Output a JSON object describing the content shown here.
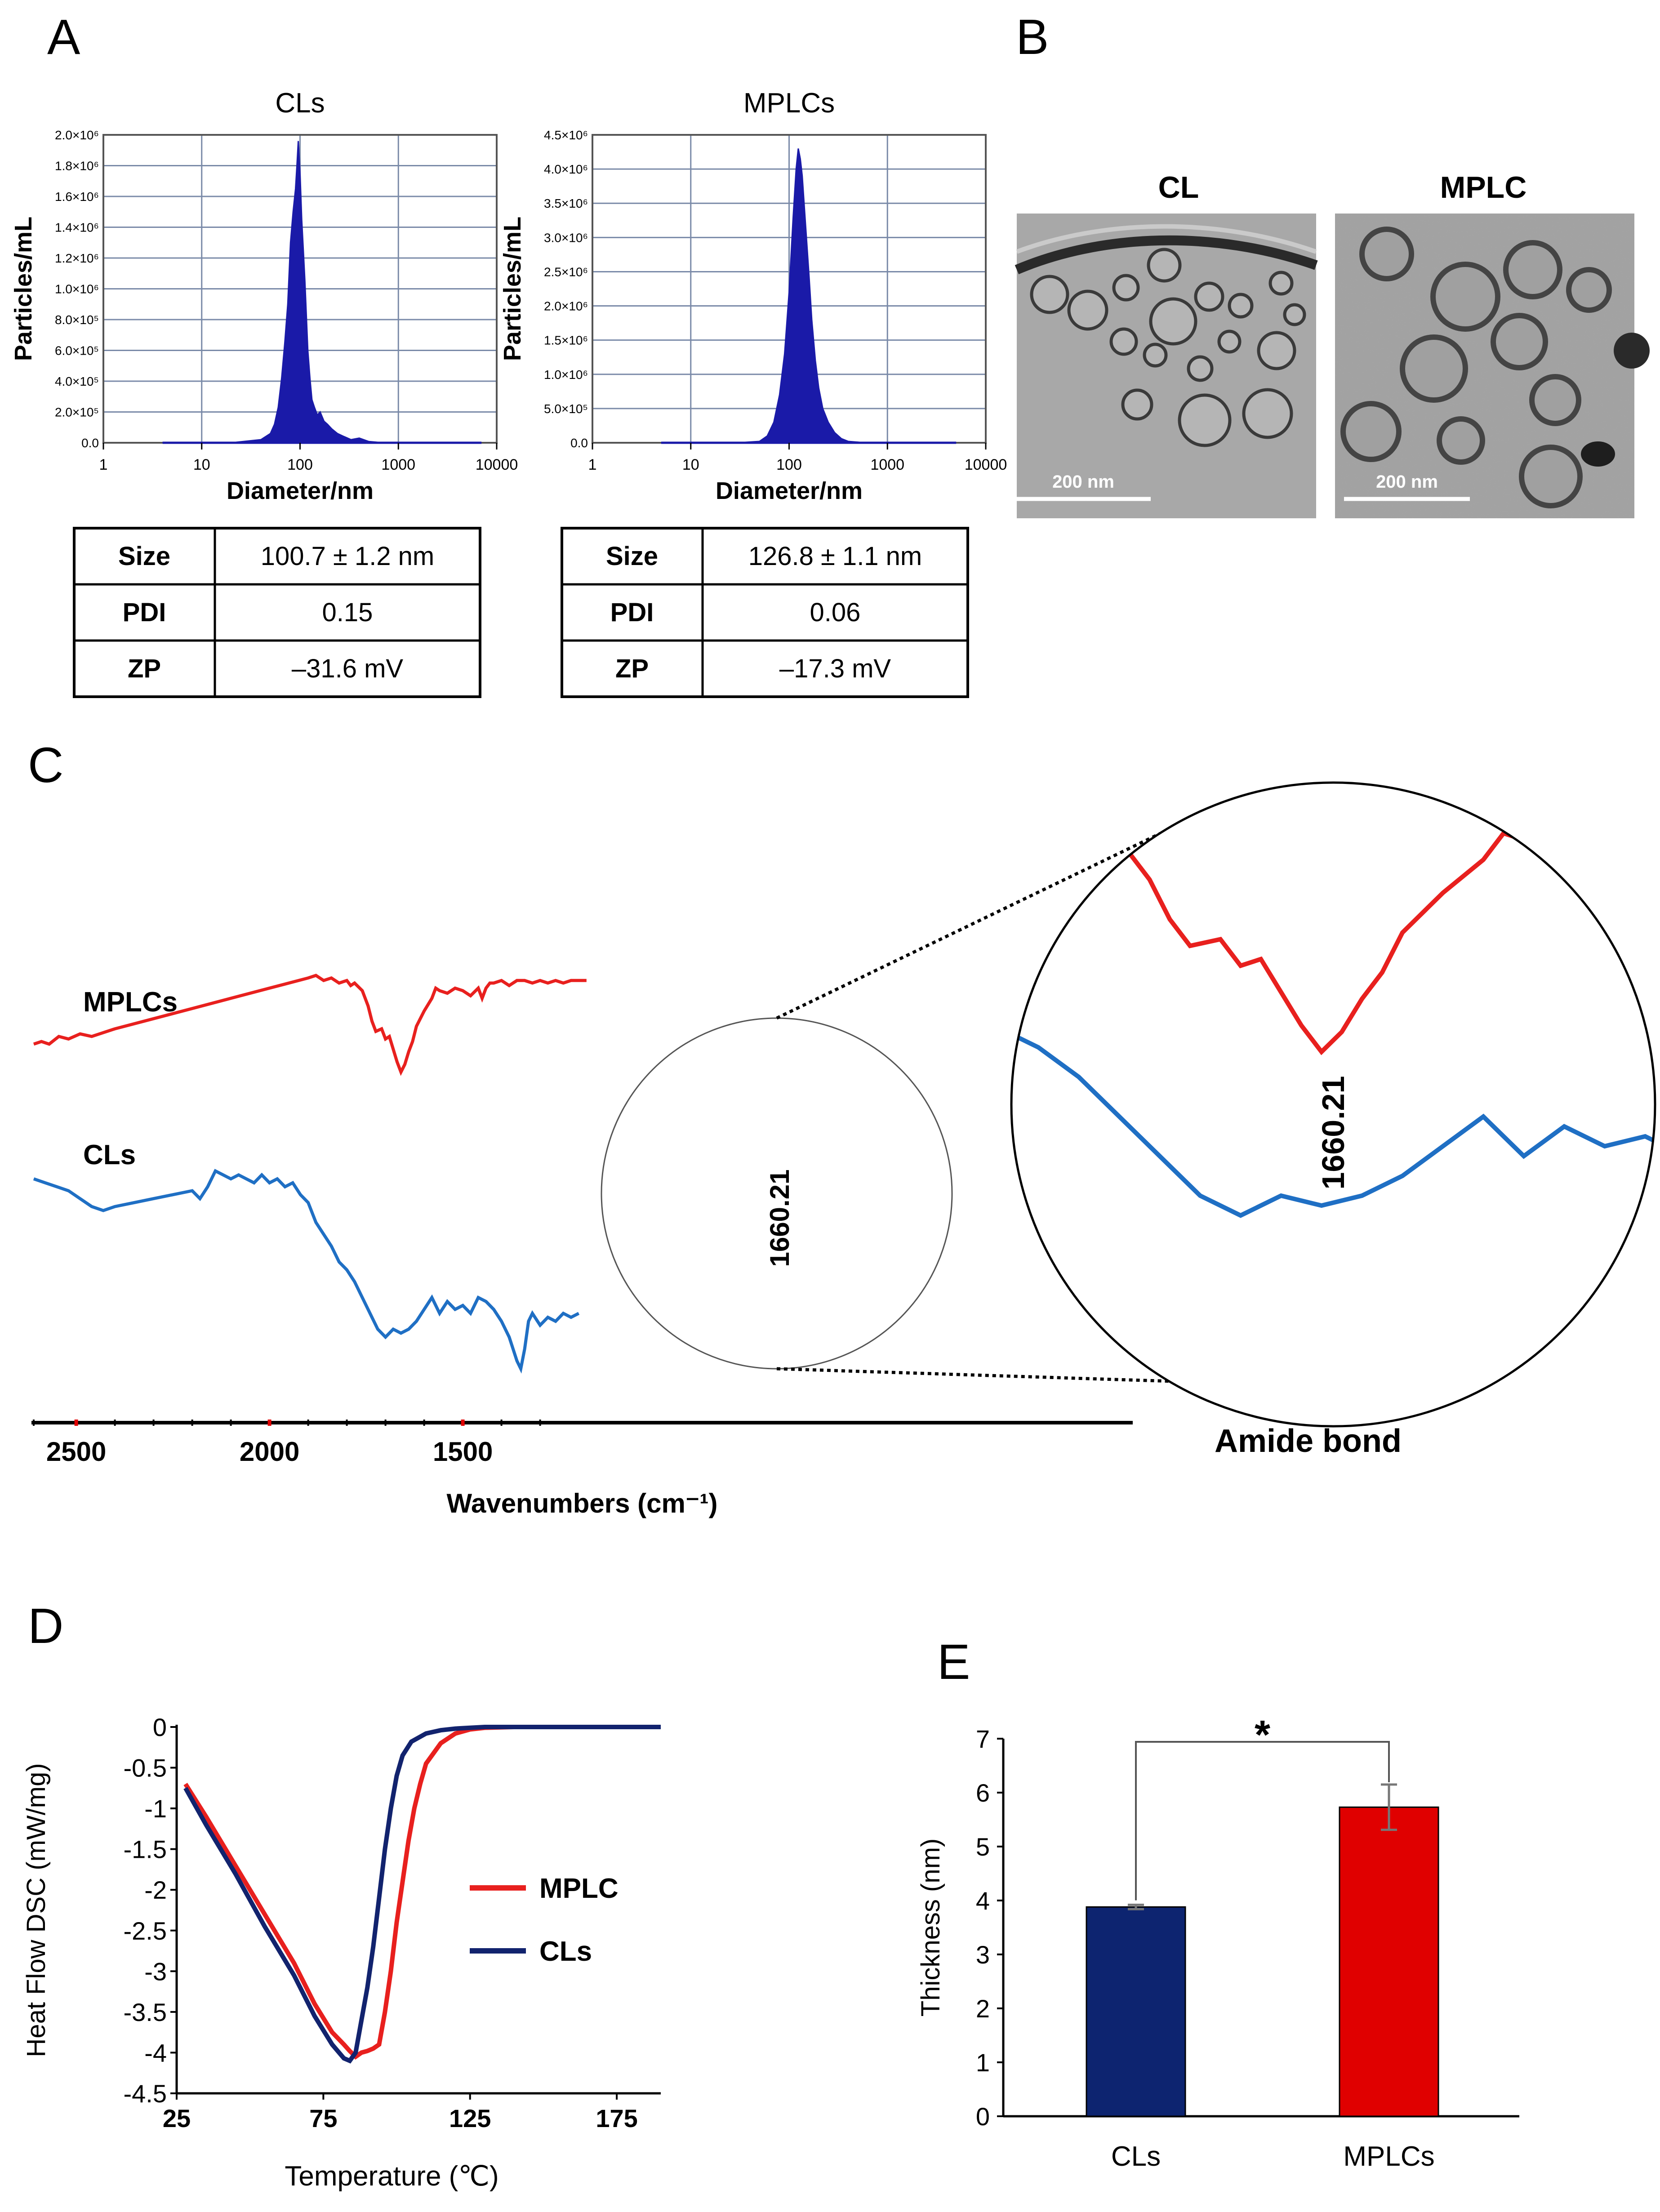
{
  "panels": {
    "a": {
      "label": "A"
    },
    "b": {
      "label": "B"
    },
    "c": {
      "label": "C"
    },
    "d": {
      "label": "D"
    },
    "e": {
      "label": "E"
    }
  },
  "nta_tables": [
    {
      "rows": [
        {
          "key": "Size",
          "value": "100.7 ± 1.2 nm"
        },
        {
          "key": "PDI",
          "value": "0.15"
        },
        {
          "key": "ZP",
          "value": "–31.6 mV"
        }
      ]
    },
    {
      "rows": [
        {
          "key": "Size",
          "value": "126.8 ± 1.1 nm"
        },
        {
          "key": "PDI",
          "value": "0.06"
        },
        {
          "key": "ZP",
          "value": "–17.3 mV"
        }
      ]
    }
  ],
  "tem": {
    "images": [
      {
        "title": "CL",
        "scale_label": "200 nm"
      },
      {
        "title": "MPLC",
        "scale_label": "200 nm"
      }
    ]
  },
  "colors": {
    "red": "#e8201e",
    "blue": "#1f6fc4",
    "navy": "#12236e",
    "nta": "#1a1aa8",
    "bar_cls": "#0d2470",
    "bar_mplcs": "#e00000"
  },
  "chart_data": [
    {
      "id": "nta-cls",
      "type": "histogram",
      "title": "CLs",
      "xlabel": "Diameter/nm",
      "ylabel": "Particles/mL",
      "x_scale": "log",
      "xlim": [
        1,
        10000
      ],
      "ylim": [
        0,
        2000000
      ],
      "x_ticks": [
        "1",
        "10",
        "100",
        "1000",
        "10000"
      ],
      "y_ticks": [
        "0.0",
        "2.0×10⁵",
        "4.0×10⁵",
        "6.0×10⁵",
        "8.0×10⁵",
        "1.0×10⁶",
        "1.2×10⁶",
        "1.4×10⁶",
        "1.6×10⁶",
        "1.8×10⁶",
        "2.0×10⁶"
      ],
      "grid": true,
      "x": [
        4,
        20,
        40,
        50,
        55,
        60,
        65,
        70,
        75,
        80,
        85,
        90,
        93,
        96,
        100,
        104,
        108,
        112,
        116,
        120,
        126,
        132,
        140,
        150,
        160,
        175,
        190,
        210,
        240,
        280,
        330,
        400,
        500,
        700,
        1000,
        3000,
        7000
      ],
      "y": [
        0,
        0,
        20000,
        60000,
        120000,
        230000,
        420000,
        650000,
        900000,
        1300000,
        1500000,
        1650000,
        1800000,
        1960000,
        1750000,
        1450000,
        1250000,
        1050000,
        820000,
        600000,
        420000,
        280000,
        230000,
        180000,
        200000,
        140000,
        120000,
        90000,
        60000,
        40000,
        20000,
        30000,
        8000,
        0,
        0,
        0,
        0
      ]
    },
    {
      "id": "nta-mplcs",
      "type": "histogram",
      "title": "MPLCs",
      "xlabel": "Diameter/nm",
      "ylabel": "Particles/mL",
      "x_scale": "log",
      "xlim": [
        1,
        10000
      ],
      "ylim": [
        0,
        4500000
      ],
      "x_ticks": [
        "1",
        "10",
        "100",
        "1000",
        "10000"
      ],
      "y_ticks": [
        "0.0",
        "5.0×10⁵",
        "1.0×10⁶",
        "1.5×10⁶",
        "2.0×10⁶",
        "2.5×10⁶",
        "3.0×10⁶",
        "3.5×10⁶",
        "4.0×10⁶",
        "4.5×10⁶"
      ],
      "grid": true,
      "x": [
        5,
        30,
        50,
        60,
        70,
        80,
        90,
        100,
        110,
        118,
        124,
        130,
        136,
        142,
        150,
        160,
        170,
        185,
        200,
        220,
        250,
        290,
        340,
        400,
        600,
        1000,
        5000
      ],
      "y": [
        0,
        0,
        20000,
        100000,
        300000,
        700000,
        1300000,
        2200000,
        3300000,
        4000000,
        4300000,
        4150000,
        3900000,
        3500000,
        3000000,
        2400000,
        1800000,
        1200000,
        800000,
        500000,
        300000,
        150000,
        60000,
        20000,
        0,
        0,
        0
      ]
    },
    {
      "id": "ftir",
      "type": "line",
      "xlabel": "Wavenumbers (cm⁻¹)",
      "x_ticks": [
        "2500",
        "2000",
        "1500"
      ],
      "x_reversed": true,
      "xlim": [
        2610,
        1180
      ],
      "ylim": [
        0,
        1
      ],
      "peak_label": "1660.21",
      "inset_label": "Amide bond",
      "series": [
        {
          "name": "MPLCs",
          "color": "#e8201e",
          "x": [
            2610,
            2590,
            2570,
            2545,
            2520,
            2490,
            2460,
            2400,
            2300,
            2200,
            2100,
            2000,
            1950,
            1900,
            1880,
            1860,
            1840,
            1820,
            1800,
            1790,
            1780,
            1760,
            1745,
            1735,
            1725,
            1710,
            1700,
            1690,
            1680,
            1670,
            1660,
            1650,
            1640,
            1630,
            1620,
            1600,
            1580,
            1570,
            1560,
            1540,
            1520,
            1500,
            1480,
            1460,
            1450,
            1440,
            1430,
            1420,
            1400,
            1380,
            1360,
            1340,
            1320,
            1300,
            1280,
            1260,
            1240,
            1220,
            1200,
            1180
          ],
          "y": [
            0.73,
            0.74,
            0.73,
            0.76,
            0.75,
            0.77,
            0.76,
            0.79,
            0.83,
            0.87,
            0.91,
            0.95,
            0.97,
            0.99,
            1.0,
            0.98,
            0.99,
            0.97,
            0.98,
            0.96,
            0.97,
            0.94,
            0.88,
            0.82,
            0.78,
            0.79,
            0.75,
            0.76,
            0.71,
            0.66,
            0.62,
            0.65,
            0.7,
            0.74,
            0.8,
            0.86,
            0.91,
            0.95,
            0.94,
            0.93,
            0.95,
            0.94,
            0.92,
            0.95,
            0.91,
            0.95,
            0.97,
            0.97,
            0.98,
            0.96,
            0.98,
            0.98,
            0.97,
            0.98,
            0.97,
            0.98,
            0.97,
            0.98,
            0.98,
            0.98
          ]
        },
        {
          "name": "CLs",
          "color": "#1f6fc4",
          "x": [
            2610,
            2580,
            2550,
            2520,
            2490,
            2460,
            2430,
            2400,
            2350,
            2300,
            2250,
            2200,
            2180,
            2160,
            2140,
            2120,
            2100,
            2080,
            2060,
            2040,
            2020,
            2000,
            1980,
            1960,
            1940,
            1920,
            1900,
            1880,
            1860,
            1840,
            1820,
            1800,
            1780,
            1760,
            1740,
            1720,
            1700,
            1680,
            1660,
            1640,
            1620,
            1600,
            1580,
            1560,
            1540,
            1520,
            1500,
            1480,
            1460,
            1440,
            1420,
            1400,
            1380,
            1360,
            1350,
            1340,
            1330,
            1320,
            1300,
            1280,
            1260,
            1240,
            1220,
            1200
          ],
          "y": [
            0.48,
            0.47,
            0.46,
            0.45,
            0.43,
            0.41,
            0.4,
            0.41,
            0.42,
            0.43,
            0.44,
            0.45,
            0.43,
            0.46,
            0.5,
            0.49,
            0.48,
            0.49,
            0.48,
            0.47,
            0.49,
            0.47,
            0.48,
            0.46,
            0.47,
            0.44,
            0.42,
            0.37,
            0.34,
            0.31,
            0.27,
            0.25,
            0.22,
            0.18,
            0.14,
            0.1,
            0.08,
            0.1,
            0.09,
            0.1,
            0.12,
            0.15,
            0.18,
            0.14,
            0.17,
            0.15,
            0.16,
            0.14,
            0.18,
            0.17,
            0.15,
            0.12,
            0.08,
            0.02,
            0.0,
            0.05,
            0.12,
            0.14,
            0.11,
            0.13,
            0.12,
            0.14,
            0.13,
            0.14
          ]
        }
      ]
    },
    {
      "id": "dsc",
      "type": "line",
      "xlabel": "Temperature (℃)",
      "ylabel": "Heat Flow DSC (mW/mg)",
      "xlim": [
        25,
        190
      ],
      "ylim": [
        -4.5,
        0
      ],
      "x_ticks": [
        "25",
        "75",
        "125",
        "175"
      ],
      "y_ticks": [
        "0",
        "-0.5",
        "-1",
        "-1.5",
        "-2",
        "-2.5",
        "-3",
        "-3.5",
        "-4",
        "-4.5"
      ],
      "legend": "center-right",
      "series": [
        {
          "name": "MPLC",
          "color": "#e8201e",
          "x": [
            28,
            35,
            45,
            55,
            65,
            72,
            78,
            82,
            84,
            86,
            88,
            90,
            92,
            94,
            96,
            98,
            100,
            102,
            104,
            106,
            108,
            110,
            115,
            120,
            125,
            130,
            140,
            160,
            190
          ],
          "y": [
            -0.7,
            -1.1,
            -1.7,
            -2.3,
            -2.9,
            -3.4,
            -3.75,
            -3.9,
            -3.98,
            -4.05,
            -4.0,
            -3.98,
            -3.95,
            -3.9,
            -3.5,
            -3.0,
            -2.4,
            -1.9,
            -1.4,
            -1.0,
            -0.7,
            -0.45,
            -0.2,
            -0.08,
            -0.03,
            -0.01,
            0,
            0,
            0
          ]
        },
        {
          "name": "CLs",
          "color": "#12236e",
          "x": [
            28,
            35,
            45,
            55,
            65,
            72,
            78,
            82,
            84,
            86,
            88,
            90,
            92,
            94,
            96,
            98,
            100,
            102,
            105,
            110,
            115,
            120,
            125,
            130,
            140,
            160,
            190
          ],
          "y": [
            -0.75,
            -1.2,
            -1.8,
            -2.45,
            -3.05,
            -3.55,
            -3.9,
            -4.07,
            -4.1,
            -4.0,
            -3.6,
            -3.2,
            -2.7,
            -2.1,
            -1.5,
            -1.0,
            -0.6,
            -0.35,
            -0.18,
            -0.08,
            -0.04,
            -0.02,
            -0.01,
            0,
            0,
            0,
            0
          ]
        }
      ]
    },
    {
      "id": "thickness",
      "type": "bar",
      "ylabel": "Thickness (nm)",
      "categories": [
        "CLs",
        "MPLCs"
      ],
      "values": [
        3.88,
        5.73
      ],
      "errors": [
        0.04,
        0.42
      ],
      "colors": [
        "#0d2470",
        "#e00000"
      ],
      "ylim": [
        0,
        7
      ],
      "y_ticks": [
        "0",
        "1",
        "2",
        "3",
        "4",
        "5",
        "6",
        "7"
      ],
      "significance": "*"
    }
  ]
}
